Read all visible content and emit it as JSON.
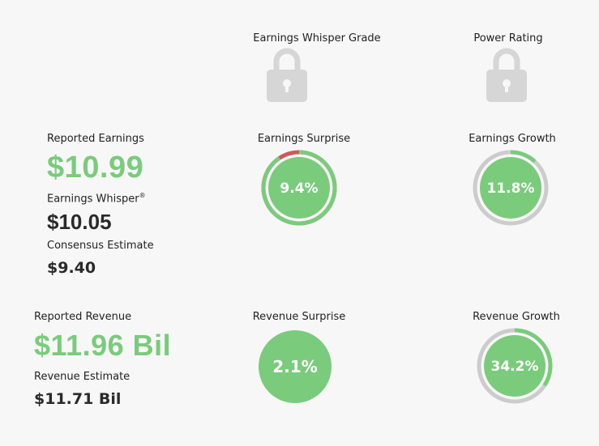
{
  "grades": {
    "whisper_grade_label": "Earnings Whisper Grade",
    "power_rating_label": "Power Rating",
    "lock_icon": "lock-icon"
  },
  "earnings": {
    "reported_label": "Reported Earnings",
    "reported_value": "$10.99",
    "whisper_label": "Earnings Whisper",
    "whisper_mark": "®",
    "whisper_value": "$10.05",
    "consensus_label": "Consensus Estimate",
    "consensus_value": "$9.40"
  },
  "revenue": {
    "reported_label": "Reported Revenue",
    "reported_value": "$11.96 Bil",
    "estimate_label": "Revenue Estimate",
    "estimate_value": "$11.71 Bil"
  },
  "gauges": {
    "earnings_surprise": {
      "label": "Earnings Surprise",
      "value_text": "9.4%",
      "arc_percent": 90.6
    },
    "earnings_growth": {
      "label": "Earnings Growth",
      "value_text": "11.8%",
      "arc_percent": 11.8
    },
    "revenue_surprise": {
      "label": "Revenue Surprise",
      "value_text": "2.1%"
    },
    "revenue_growth": {
      "label": "Revenue Growth",
      "value_text": "34.2%",
      "arc_percent": 34.2
    }
  },
  "colors": {
    "green": "#7acc7c",
    "red": "#cc5a5a",
    "track": "#cccccc",
    "lock": "#d6d6d6"
  }
}
